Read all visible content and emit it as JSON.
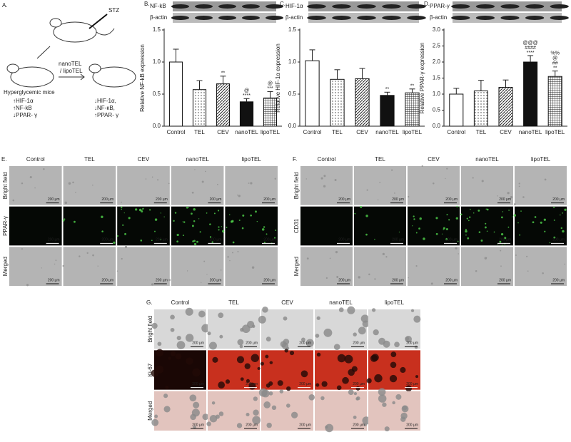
{
  "panel_a": {
    "label": "A.",
    "agent": "STZ",
    "treatment": [
      "nanoTEL",
      "/ lipoTEL"
    ],
    "model": "Hyperglycemic mice",
    "before": [
      "↑HIF-1α",
      "↑NF-kB",
      "↓PPAR- γ"
    ],
    "after": [
      "↓HIF-1α,",
      "↓NF-κB,",
      "↑PPAR- γ"
    ]
  },
  "chart_data": [
    {
      "type": "bar",
      "panel": "B.",
      "blot_labels": [
        "NF-kB",
        "β-actin"
      ],
      "y_label": "Relative NF-kB expression",
      "categories": [
        "Control",
        "TEL",
        "CEV",
        "nanoTEL",
        "lipoTEL"
      ],
      "values": [
        1.0,
        0.57,
        0.66,
        0.38,
        0.44
      ],
      "errors": [
        0.2,
        0.14,
        0.12,
        0.05,
        0.1
      ],
      "annotations": [
        null,
        null,
        [
          "**"
        ],
        [
          "@",
          "****"
        ],
        [
          "@",
          "***"
        ]
      ],
      "patterns": [
        "none",
        "dots",
        "diagonal",
        "solid",
        "grid"
      ],
      "ylim": [
        0,
        1.5
      ],
      "yticks": [
        {
          "value": 0,
          "label": "0.0"
        },
        0.5,
        {
          "value": 1,
          "label": "1.0"
        },
        1.5
      ]
    },
    {
      "type": "bar",
      "panel": "C.",
      "blot_labels": [
        "HIF-1α",
        "β-actin"
      ],
      "y_label": "Relative HIF-1α expression",
      "categories": [
        "Control",
        "TEL",
        "CEV",
        "nanoTEL",
        "lipoTEL"
      ],
      "values": [
        1.02,
        0.73,
        0.74,
        0.48,
        0.52
      ],
      "errors": [
        0.17,
        0.15,
        0.16,
        0.05,
        0.06
      ],
      "annotations": [
        null,
        null,
        null,
        [
          "**"
        ],
        [
          "**"
        ]
      ],
      "patterns": [
        "none",
        "dots",
        "diagonal",
        "solid",
        "grid"
      ],
      "ylim": [
        0,
        1.5
      ],
      "yticks": [
        {
          "value": 0,
          "label": "0.0"
        },
        0.5,
        {
          "value": 1,
          "label": "1.0"
        },
        1.5
      ]
    },
    {
      "type": "bar",
      "panel": "D.",
      "blot_labels": [
        "PPAR-γ",
        "β-actin"
      ],
      "y_label": "Relative PPAR-γ expression",
      "categories": [
        "Control",
        "TEL",
        "CEV",
        "nanoTEL",
        "lipoTEL"
      ],
      "values": [
        1.0,
        1.1,
        1.21,
        2.0,
        1.55
      ],
      "errors": [
        0.18,
        0.33,
        0.23,
        0.2,
        0.17
      ],
      "annotations": [
        null,
        null,
        null,
        [
          "@@@",
          "####",
          "****"
        ],
        [
          "%%",
          "@",
          "##",
          "**"
        ]
      ],
      "patterns": [
        "none",
        "dots",
        "diagonal",
        "solid",
        "grid"
      ],
      "ylim": [
        0,
        3
      ],
      "yticks": [
        {
          "value": 0,
          "label": "0.0"
        },
        0.5,
        {
          "value": 1,
          "label": "1.0"
        },
        1.5,
        {
          "value": 2,
          "label": "2.0"
        },
        2.5,
        {
          "value": 3,
          "label": "3.0"
        }
      ]
    }
  ],
  "panels": [
    {
      "label": "E.",
      "columns": [
        "Control",
        "TEL",
        "CEV",
        "nanoTEL",
        "lipoTEL"
      ],
      "rows": [
        "Bright field",
        "PPAR-γ",
        "Merged"
      ],
      "scale_bar": "200 µm"
    },
    {
      "label": "F.",
      "columns": [
        "Control",
        "TEL",
        "CEV",
        "nanoTEL",
        "lipoTEL"
      ],
      "rows": [
        "Bright field",
        "CD31",
        "Merged"
      ],
      "scale_bar": "200 µm"
    },
    {
      "label": "G.",
      "columns": [
        "Control",
        "TEL",
        "CEV",
        "nanoTEL",
        "lipoTEL"
      ],
      "rows": [
        "Bright field",
        "Ki-67",
        "Merged"
      ],
      "scale_bar": "200 µm"
    }
  ]
}
